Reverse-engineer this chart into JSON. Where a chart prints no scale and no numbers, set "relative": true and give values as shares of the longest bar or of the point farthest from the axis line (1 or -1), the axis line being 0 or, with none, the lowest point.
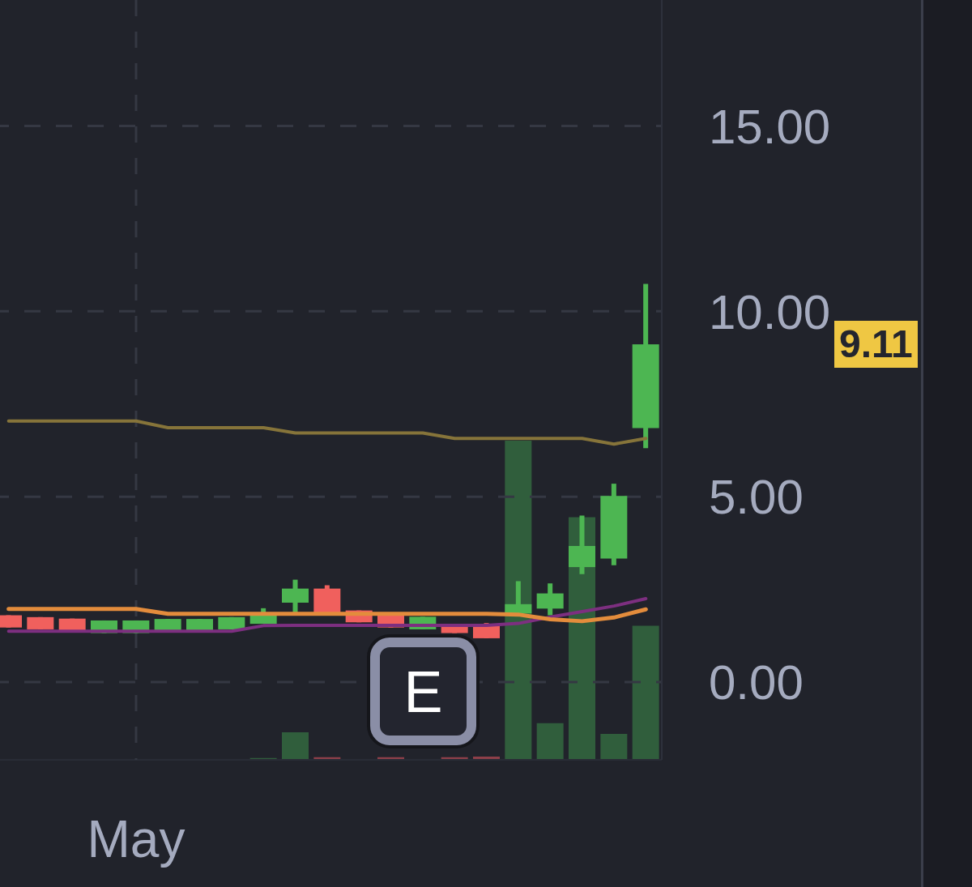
{
  "chart_data": [
    {
      "type": "candlestick",
      "categories": [
        null,
        null,
        null,
        null,
        "May",
        null,
        null,
        null,
        null,
        null,
        null,
        null,
        null,
        null,
        null,
        null,
        null,
        null,
        null,
        null,
        null
      ],
      "ohlc": [
        [
          1.8,
          1.8,
          1.47,
          1.47
        ],
        [
          1.75,
          1.75,
          1.42,
          1.42
        ],
        [
          1.71,
          1.71,
          1.37,
          1.37
        ],
        [
          1.32,
          1.66,
          1.32,
          1.66
        ],
        [
          1.32,
          1.66,
          1.32,
          1.66
        ],
        [
          1.37,
          1.7,
          1.37,
          1.7
        ],
        [
          1.37,
          1.7,
          1.37,
          1.7
        ],
        [
          1.42,
          1.75,
          1.42,
          1.75
        ],
        [
          1.57,
          1.99,
          1.57,
          1.87
        ],
        [
          2.14,
          2.76,
          1.88,
          2.52
        ],
        [
          2.52,
          2.61,
          1.86,
          1.86
        ],
        [
          1.93,
          1.93,
          1.61,
          1.61
        ],
        [
          1.79,
          1.79,
          1.47,
          1.47
        ],
        [
          1.42,
          1.76,
          1.42,
          1.76
        ],
        [
          1.52,
          1.52,
          1.32,
          1.32
        ],
        [
          1.52,
          1.59,
          1.18,
          1.18
        ],
        [
          1.85,
          2.72,
          1.85,
          2.1
        ],
        [
          1.98,
          2.66,
          1.8,
          2.39
        ],
        [
          3.1,
          4.49,
          2.91,
          3.67
        ],
        [
          3.33,
          5.35,
          3.15,
          5.02
        ],
        [
          6.85,
          10.74,
          6.31,
          9.11
        ]
      ],
      "colors": [
        "#f0605d",
        "#f0605d",
        "#f0605d",
        "#4db652",
        "#4db652",
        "#4db652",
        "#4db652",
        "#4db652",
        "#4db652",
        "#4db652",
        "#f0605d",
        "#f0605d",
        "#f0605d",
        "#4db652",
        "#f0605d",
        "#f0605d",
        "#4db652",
        "#4db652",
        "#4db652",
        "#4db652",
        "#4db652"
      ],
      "series": [
        {
          "type": "line",
          "color": "#86743a",
          "values": [
            7.04,
            7.04,
            7.04,
            7.04,
            7.04,
            6.86,
            6.86,
            6.86,
            6.86,
            6.72,
            6.72,
            6.72,
            6.72,
            6.72,
            6.57,
            6.57,
            6.57,
            6.57,
            6.57,
            6.42,
            6.57
          ]
        },
        {
          "type": "line",
          "color": "#7d2f80",
          "values": [
            1.37,
            1.37,
            1.37,
            1.37,
            1.37,
            1.37,
            1.37,
            1.37,
            1.52,
            1.53,
            1.53,
            1.53,
            1.53,
            1.53,
            1.53,
            1.53,
            1.58,
            1.75,
            1.9,
            2.05,
            2.25
          ]
        },
        {
          "type": "line",
          "color": "#e38c3c",
          "values": [
            1.97,
            1.97,
            1.97,
            1.97,
            1.97,
            1.84,
            1.84,
            1.84,
            1.84,
            1.84,
            1.84,
            1.84,
            1.84,
            1.84,
            1.84,
            1.84,
            1.82,
            1.69,
            1.64,
            1.74,
            1.96
          ]
        }
      ],
      "ylim": [
        -2.1,
        18.4
      ],
      "yticks": [
        {
          "value": 0,
          "label": "0.00"
        },
        {
          "value": 5,
          "label": "5.00"
        },
        {
          "value": 10,
          "label": "10.00"
        },
        {
          "value": 15,
          "label": "15.00"
        }
      ],
      "grid": true,
      "annotations": [
        "9.11",
        "E"
      ]
    },
    {
      "type": "bar",
      "relative": true,
      "categories": [
        null,
        null,
        null,
        null,
        null,
        null,
        null,
        null,
        null,
        null,
        null,
        null,
        null,
        null,
        null,
        null,
        null,
        null,
        null,
        null,
        null
      ],
      "values": [
        null,
        null,
        null,
        null,
        null,
        null,
        null,
        null,
        0.006,
        0.086,
        0.008,
        null,
        0.008,
        null,
        0.008,
        0.01,
        1,
        0.115,
        0.76,
        0.081,
        0.42
      ],
      "colors": [
        "#8e3f49",
        "#8e3f49",
        "#8e3f49",
        "#305e3c",
        "#305e3c",
        "#305e3c",
        "#305e3c",
        "#305e3c",
        "#305e3c",
        "#305e3c",
        "#8e3f49",
        "#8e3f49",
        "#8e3f49",
        "#305e3c",
        "#8e3f49",
        "#8e3f49",
        "#305e3c",
        "#305e3c",
        "#305e3c",
        "#305e3c",
        "#305e3c"
      ]
    }
  ]
}
